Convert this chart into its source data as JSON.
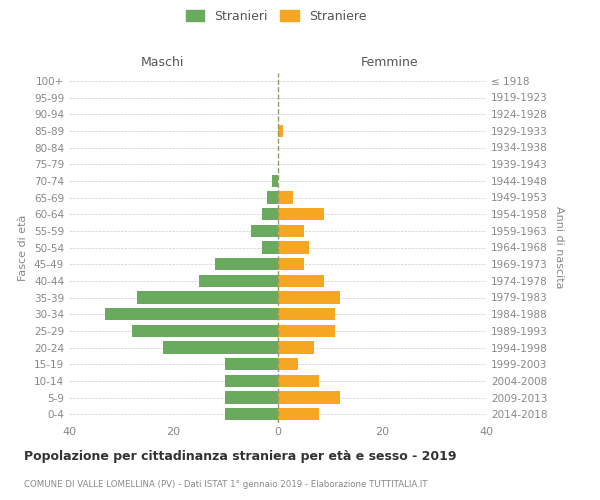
{
  "age_groups": [
    "0-4",
    "5-9",
    "10-14",
    "15-19",
    "20-24",
    "25-29",
    "30-34",
    "35-39",
    "40-44",
    "45-49",
    "50-54",
    "55-59",
    "60-64",
    "65-69",
    "70-74",
    "75-79",
    "80-84",
    "85-89",
    "90-94",
    "95-99",
    "100+"
  ],
  "birth_years": [
    "2014-2018",
    "2009-2013",
    "2004-2008",
    "1999-2003",
    "1994-1998",
    "1989-1993",
    "1984-1988",
    "1979-1983",
    "1974-1978",
    "1969-1973",
    "1964-1968",
    "1959-1963",
    "1954-1958",
    "1949-1953",
    "1944-1948",
    "1939-1943",
    "1934-1938",
    "1929-1933",
    "1924-1928",
    "1919-1923",
    "≤ 1918"
  ],
  "males": [
    10,
    10,
    10,
    10,
    22,
    28,
    33,
    27,
    15,
    12,
    3,
    5,
    3,
    2,
    1,
    0,
    0,
    0,
    0,
    0,
    0
  ],
  "females": [
    8,
    12,
    8,
    4,
    7,
    11,
    11,
    12,
    9,
    5,
    6,
    5,
    9,
    3,
    0,
    0,
    0,
    1,
    0,
    0,
    0
  ],
  "color_males": "#6aaa5e",
  "color_females": "#f5a623",
  "title": "Popolazione per cittadinanza straniera per età e sesso - 2019",
  "subtitle": "COMUNE DI VALLE LOMELLINA (PV) - Dati ISTAT 1° gennaio 2019 - Elaborazione TUTTITALIA.IT",
  "ylabel_left": "Fasce di età",
  "ylabel_right": "Anni di nascita",
  "header_left": "Maschi",
  "header_right": "Femmine",
  "legend_males": "Stranieri",
  "legend_females": "Straniere",
  "xlim": 40,
  "background_color": "#ffffff",
  "grid_color": "#cccccc",
  "dashed_line_color": "#999966"
}
